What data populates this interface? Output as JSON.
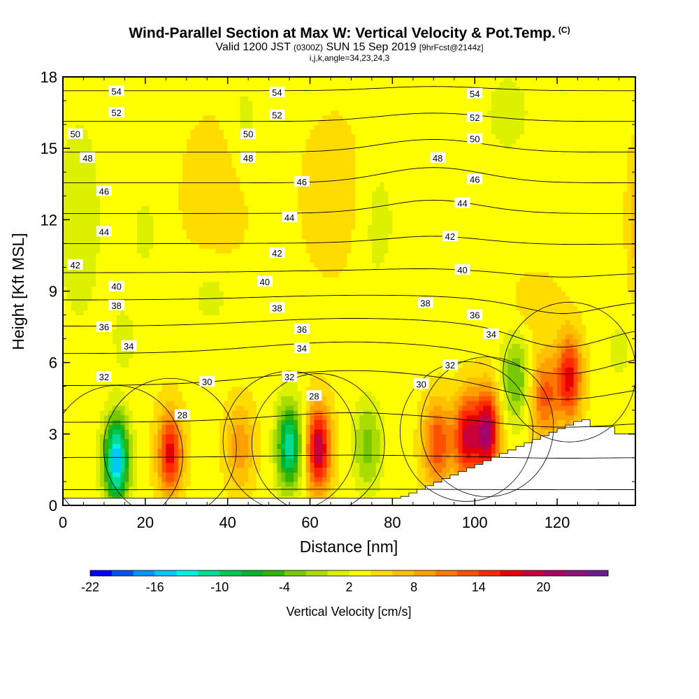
{
  "chart_data": {
    "type": "heatmap",
    "title": "Wind-Parallel Section at Max W: Vertical Velocity & Pot.Temp.",
    "copyright": "(C)",
    "subtitle_main": "Valid 1200 JST",
    "subtitle_utc": "(0300Z)",
    "subtitle_date": "SUN 15 Sep 2019",
    "subtitle_fcst": "[9hrFcst@2144z]",
    "index_line": "i,j,k,angle=34,23,24,3",
    "xlabel": "Distance [nm]",
    "ylabel": "Height [Kft MSL]",
    "xlim": [
      0,
      139
    ],
    "ylim": [
      0,
      18
    ],
    "xticks": [
      0,
      20,
      40,
      60,
      80,
      100,
      120
    ],
    "yticks": [
      0,
      3,
      6,
      9,
      12,
      15,
      18
    ],
    "colorbar": {
      "label": "Vertical Velocity [cm/s]",
      "tick_labels": [
        "-22",
        "-16",
        "-10",
        "-4",
        "2",
        "8",
        "14",
        "20"
      ],
      "colors": [
        "#0000ff",
        "#0050ff",
        "#0096ff",
        "#00c8ff",
        "#00f0e6",
        "#00dc96",
        "#00c850",
        "#00b432",
        "#32b400",
        "#78c800",
        "#aadc00",
        "#dcf000",
        "#ffff00",
        "#ffdc00",
        "#ffc000",
        "#ffa000",
        "#ff7800",
        "#ff5000",
        "#ff2800",
        "#e60000",
        "#c8003c",
        "#aa0064",
        "#8c1478",
        "#6e1e8c"
      ]
    },
    "theta_contours": [
      28,
      30,
      32,
      34,
      36,
      38,
      40,
      42,
      44,
      46,
      48,
      50,
      52,
      54
    ],
    "theta_labels": [
      {
        "text": "54",
        "x": 13,
        "z": 17.4
      },
      {
        "text": "54",
        "x": 52,
        "z": 17.35
      },
      {
        "text": "54",
        "x": 100,
        "z": 17.3
      },
      {
        "text": "52",
        "x": 13,
        "z": 16.5
      },
      {
        "text": "52",
        "x": 52,
        "z": 16.4
      },
      {
        "text": "52",
        "x": 100,
        "z": 16.3
      },
      {
        "text": "50",
        "x": 3,
        "z": 15.6
      },
      {
        "text": "50",
        "x": 45,
        "z": 15.6
      },
      {
        "text": "50",
        "x": 100,
        "z": 15.4
      },
      {
        "text": "48",
        "x": 6,
        "z": 14.6
      },
      {
        "text": "48",
        "x": 45,
        "z": 14.6
      },
      {
        "text": "48",
        "x": 91,
        "z": 14.6
      },
      {
        "text": "46",
        "x": 10,
        "z": 13.2
      },
      {
        "text": "46",
        "x": 58,
        "z": 13.6
      },
      {
        "text": "46",
        "x": 100,
        "z": 13.7
      },
      {
        "text": "44",
        "x": 10,
        "z": 11.5
      },
      {
        "text": "44",
        "x": 55,
        "z": 12.1
      },
      {
        "text": "44",
        "x": 97,
        "z": 12.7
      },
      {
        "text": "42",
        "x": 3,
        "z": 10.1
      },
      {
        "text": "42",
        "x": 52,
        "z": 10.6
      },
      {
        "text": "42",
        "x": 94,
        "z": 11.3
      },
      {
        "text": "40",
        "x": 13,
        "z": 9.2
      },
      {
        "text": "40",
        "x": 49,
        "z": 9.4
      },
      {
        "text": "40",
        "x": 97,
        "z": 9.9
      },
      {
        "text": "38",
        "x": 13,
        "z": 8.4
      },
      {
        "text": "38",
        "x": 52,
        "z": 8.3
      },
      {
        "text": "38",
        "x": 88,
        "z": 8.5
      },
      {
        "text": "36",
        "x": 10,
        "z": 7.5
      },
      {
        "text": "36",
        "x": 58,
        "z": 7.4
      },
      {
        "text": "36",
        "x": 100,
        "z": 8.0
      },
      {
        "text": "34",
        "x": 16,
        "z": 6.7
      },
      {
        "text": "34",
        "x": 58,
        "z": 6.6
      },
      {
        "text": "34",
        "x": 104,
        "z": 7.2
      },
      {
        "text": "32",
        "x": 10,
        "z": 5.4
      },
      {
        "text": "32",
        "x": 55,
        "z": 5.4
      },
      {
        "text": "32",
        "x": 94,
        "z": 5.9
      },
      {
        "text": "30",
        "x": 35,
        "z": 5.2
      },
      {
        "text": "30",
        "x": 87,
        "z": 5.1
      },
      {
        "text": "28",
        "x": 29,
        "z": 3.8
      },
      {
        "text": "28",
        "x": 61,
        "z": 4.6
      }
    ],
    "w_maxima": [
      {
        "x": 13,
        "z": 1.9,
        "w": -18
      },
      {
        "x": 26,
        "z": 2.2,
        "w": 13
      },
      {
        "x": 43,
        "z": 2.5,
        "w": 6
      },
      {
        "x": 55,
        "z": 2.5,
        "w": -14
      },
      {
        "x": 62,
        "z": 2.4,
        "w": 16
      },
      {
        "x": 74,
        "z": 2.5,
        "w": -6
      },
      {
        "x": 91,
        "z": 2.6,
        "w": 10
      },
      {
        "x": 98,
        "z": 2.9,
        "w": 14
      },
      {
        "x": 103,
        "z": 3.1,
        "w": 17
      },
      {
        "x": 110,
        "z": 5.3,
        "w": -7
      },
      {
        "x": 117,
        "z": 4.6,
        "w": 9
      },
      {
        "x": 123,
        "z": 5.4,
        "w": 13
      }
    ]
  }
}
